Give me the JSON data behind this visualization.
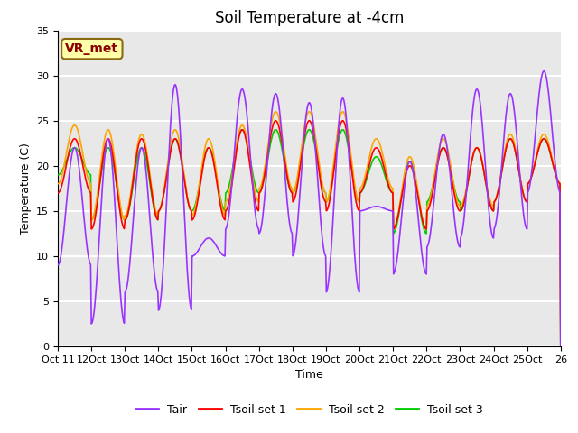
{
  "title": "Soil Temperature at -4cm",
  "xlabel": "Time",
  "ylabel": "Temperature (C)",
  "ylim": [
    0,
    35
  ],
  "yticks": [
    0,
    5,
    10,
    15,
    20,
    25,
    30,
    35
  ],
  "annotation_text": "VR_met",
  "annotation_color": "#8B0000",
  "annotation_bg": "#FFFFAA",
  "line_colors": {
    "Tair": "#9933FF",
    "Tsoil set 1": "#FF0000",
    "Tsoil set 2": "#FFA500",
    "Tsoil set 3": "#00CC00"
  },
  "line_widths": {
    "Tair": 1.2,
    "Tsoil set 1": 1.2,
    "Tsoil set 2": 1.2,
    "Tsoil set 3": 1.2
  },
  "bg_color": "#E8E8E8",
  "grid_color": "white",
  "title_fontsize": 12,
  "axis_label_fontsize": 9,
  "tick_fontsize": 8,
  "legend_fontsize": 9,
  "Tair_peaks": [
    22,
    23,
    22,
    29,
    12,
    28.5,
    28,
    27,
    27.5,
    15.5,
    20.5,
    23.5,
    28.5,
    28,
    30.5
  ],
  "Tair_troughs": [
    9,
    2.5,
    6,
    4,
    10,
    13,
    12.5,
    10,
    6,
    15,
    8,
    11,
    12,
    13,
    17
  ],
  "Ts1_peaks": [
    23,
    23,
    23,
    23,
    22,
    24,
    25,
    25,
    25,
    22,
    20,
    22,
    22,
    23,
    23
  ],
  "Ts1_troughs": [
    17,
    13,
    14,
    15,
    14,
    15,
    17,
    16,
    15,
    17,
    13,
    15,
    15,
    16,
    18
  ],
  "Ts2_peaks": [
    24.5,
    24,
    23.5,
    24,
    23,
    24.5,
    26,
    26,
    26,
    23,
    21,
    23,
    22,
    23.5,
    23.5
  ],
  "Ts2_troughs": [
    18,
    14,
    14.5,
    15,
    14.5,
    16,
    17.5,
    17,
    16,
    17.5,
    13,
    15.5,
    15.5,
    16,
    18
  ],
  "Ts3_peaks": [
    22,
    22,
    22,
    23,
    22,
    24,
    24,
    24,
    24,
    21,
    20.5,
    22,
    22,
    23,
    23
  ],
  "Ts3_troughs": [
    19,
    14,
    14,
    15,
    15,
    17,
    17,
    17,
    16,
    17,
    12.5,
    16,
    15,
    16,
    18
  ]
}
